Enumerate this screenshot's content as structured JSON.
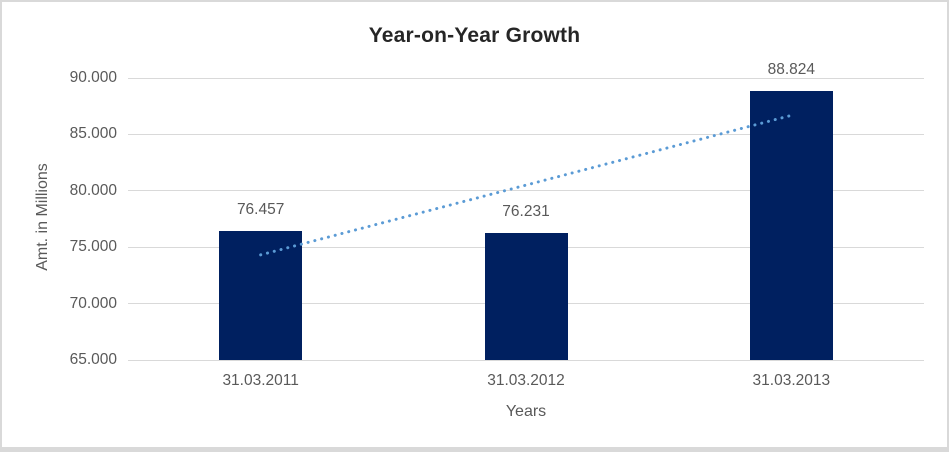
{
  "chart_data": {
    "type": "bar",
    "title": "Year-on-Year Growth",
    "categories": [
      "31.03.2011",
      "31.03.2012",
      "31.03.2013"
    ],
    "values": [
      76457,
      76231,
      88824
    ],
    "value_labels": [
      "76.457",
      "76.231",
      "88.824"
    ],
    "xlabel": "Years",
    "ylabel": "Amt. in Millions",
    "ylim": [
      65000,
      90000
    ],
    "yticks": [
      65000,
      70000,
      75000,
      80000,
      85000,
      90000
    ],
    "ytick_labels": [
      "65.000",
      "70.000",
      "75.000",
      "80.000",
      "85.000",
      "90.000"
    ],
    "grid": true,
    "legend": "none",
    "bar_color": "#002060",
    "gridline_color": "#d9d9d9",
    "trendline": {
      "type": "linear",
      "style": "dotted",
      "color": "#5b9bd5"
    },
    "text_colors": {
      "title": "#262626",
      "axis": "#595959",
      "data_label": "#595959"
    }
  }
}
